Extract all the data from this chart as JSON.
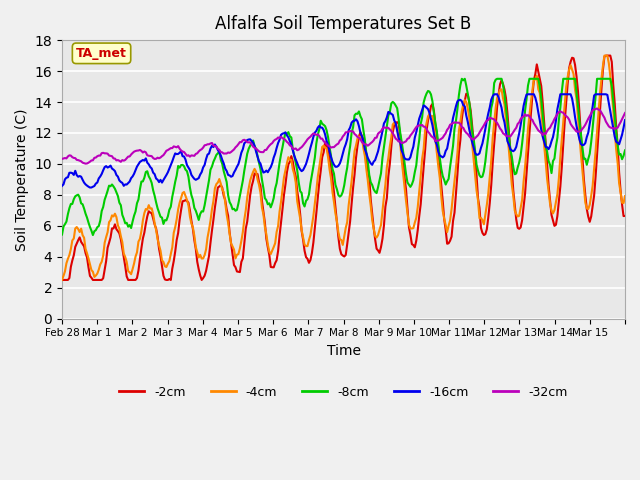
{
  "title": "Alfalfa Soil Temperatures Set B",
  "xlabel": "Time",
  "ylabel": "Soil Temperature (C)",
  "ylim": [
    0,
    18
  ],
  "yticks": [
    0,
    2,
    4,
    6,
    8,
    10,
    12,
    14,
    16,
    18
  ],
  "annotation": "TA_met",
  "annotation_color": "#cc0000",
  "annotation_bg": "#ffffcc",
  "fig_bg": "#f0f0f0",
  "plot_bg": "#e8e8e8",
  "series_colors": {
    "-2cm": "#dd0000",
    "-4cm": "#ff8800",
    "-8cm": "#00cc00",
    "-16cm": "#0000ee",
    "-32cm": "#bb00bb"
  },
  "x_tick_labels": [
    "Feb 28",
    "Mar 1",
    "Mar 2",
    "Mar 3",
    "Mar 4",
    "Mar 5",
    "Mar 6",
    "Mar 7",
    "Mar 8",
    "Mar 9",
    "Mar 10",
    "Mar 11",
    "Mar 12",
    "Mar 13",
    "Mar 14",
    "Mar 15",
    ""
  ],
  "line_width": 1.5
}
